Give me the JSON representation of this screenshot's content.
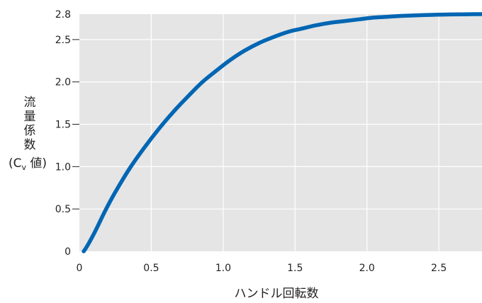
{
  "chart_data": {
    "type": "line",
    "title": "",
    "xlabel": "ハンドル回転数",
    "ylabel_lines": [
      "流",
      "量",
      "係",
      "数"
    ],
    "ylabel_paren": {
      "open": "(",
      "base": "C",
      "sub": "v",
      "suffix": " 値)"
    },
    "xlim": [
      0,
      2.8
    ],
    "ylim": [
      0,
      2.8
    ],
    "grid": true,
    "plot_background": "#e5e5e5",
    "line_color": "#0066b3",
    "x_ticks": [
      {
        "value": 0,
        "label": "0"
      },
      {
        "value": 0.5,
        "label": "0.5"
      },
      {
        "value": 1.0,
        "label": "1.0"
      },
      {
        "value": 1.5,
        "label": "1.5"
      },
      {
        "value": 2.0,
        "label": "2.0"
      },
      {
        "value": 2.5,
        "label": "2.5"
      }
    ],
    "y_ticks": [
      {
        "value": 0,
        "label": "0"
      },
      {
        "value": 0.5,
        "label": "0.5"
      },
      {
        "value": 1.0,
        "label": "1.0"
      },
      {
        "value": 1.5,
        "label": "1.5"
      },
      {
        "value": 2.0,
        "label": "2.0"
      },
      {
        "value": 2.5,
        "label": "2.5"
      },
      {
        "value": 2.8,
        "label": "2.8"
      }
    ],
    "series": [
      {
        "x": [
          0.03,
          0.05,
          0.08,
          0.12,
          0.18,
          0.25,
          0.35,
          0.45,
          0.55,
          0.65,
          0.75,
          0.85,
          0.95,
          1.05,
          1.15,
          1.25,
          1.35,
          1.45,
          1.55,
          1.65,
          1.75,
          1.85,
          1.95,
          2.05,
          2.15,
          2.25,
          2.35,
          2.45,
          2.55,
          2.65,
          2.75,
          2.8
        ],
        "y": [
          0.0,
          0.05,
          0.14,
          0.27,
          0.48,
          0.7,
          0.98,
          1.22,
          1.44,
          1.64,
          1.82,
          1.99,
          2.13,
          2.26,
          2.37,
          2.46,
          2.53,
          2.59,
          2.63,
          2.67,
          2.7,
          2.72,
          2.74,
          2.76,
          2.77,
          2.78,
          2.787,
          2.792,
          2.796,
          2.798,
          2.8,
          2.8
        ]
      }
    ]
  }
}
